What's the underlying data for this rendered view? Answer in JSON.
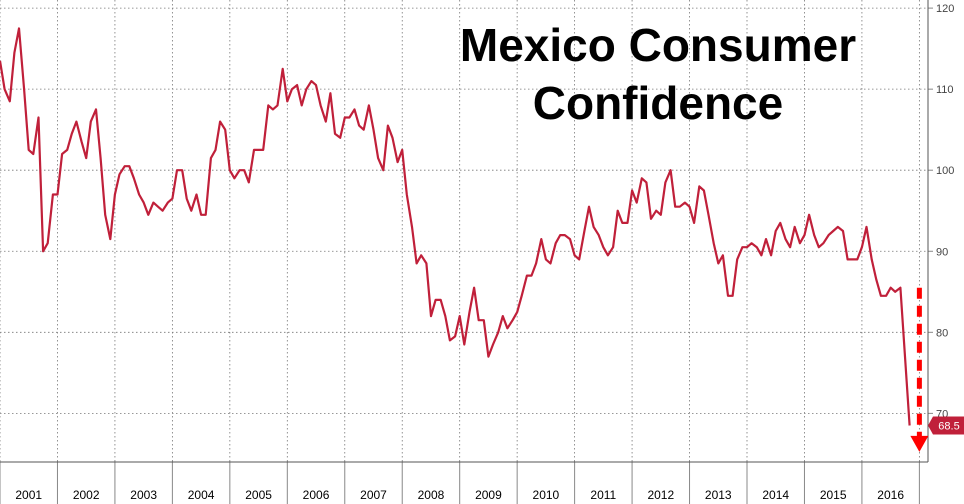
{
  "chart_data": {
    "type": "line",
    "title_lines": [
      "Mexico Consumer",
      "Confidence"
    ],
    "xlabel": "",
    "ylabel": "",
    "ylim": [
      64,
      121
    ],
    "xlim": [
      2001.0,
      2017.15
    ],
    "y_ticks": [
      120,
      110,
      100,
      90,
      80,
      70
    ],
    "x_year_labels": [
      "2001",
      "2002",
      "2003",
      "2004",
      "2005",
      "2006",
      "2007",
      "2008",
      "2009",
      "2010",
      "2011",
      "2012",
      "2013",
      "2014",
      "2015",
      "2016"
    ],
    "grid": true,
    "series": [
      {
        "name": "Mexico Consumer Confidence",
        "color": "#c0203a",
        "points": [
          [
            2001.0,
            113.5
          ],
          [
            2001.08,
            110.0
          ],
          [
            2001.17,
            108.5
          ],
          [
            2001.25,
            114.5
          ],
          [
            2001.33,
            117.5
          ],
          [
            2001.42,
            110.0
          ],
          [
            2001.5,
            102.5
          ],
          [
            2001.58,
            102.0
          ],
          [
            2001.67,
            106.5
          ],
          [
            2001.75,
            90.0
          ],
          [
            2001.83,
            91.0
          ],
          [
            2001.92,
            97.0
          ],
          [
            2002.0,
            97.0
          ],
          [
            2002.08,
            102.0
          ],
          [
            2002.17,
            102.5
          ],
          [
            2002.25,
            104.5
          ],
          [
            2002.33,
            106.0
          ],
          [
            2002.42,
            103.5
          ],
          [
            2002.5,
            101.5
          ],
          [
            2002.58,
            106.0
          ],
          [
            2002.67,
            107.5
          ],
          [
            2002.75,
            101.5
          ],
          [
            2002.83,
            94.5
          ],
          [
            2002.92,
            91.5
          ],
          [
            2003.0,
            97.0
          ],
          [
            2003.08,
            99.5
          ],
          [
            2003.17,
            100.5
          ],
          [
            2003.25,
            100.5
          ],
          [
            2003.33,
            99.0
          ],
          [
            2003.42,
            97.0
          ],
          [
            2003.5,
            96.0
          ],
          [
            2003.58,
            94.5
          ],
          [
            2003.67,
            96.0
          ],
          [
            2003.75,
            95.5
          ],
          [
            2003.83,
            95.0
          ],
          [
            2003.92,
            96.0
          ],
          [
            2004.0,
            96.5
          ],
          [
            2004.08,
            100.0
          ],
          [
            2004.17,
            100.0
          ],
          [
            2004.25,
            96.5
          ],
          [
            2004.33,
            95.0
          ],
          [
            2004.42,
            97.0
          ],
          [
            2004.5,
            94.5
          ],
          [
            2004.58,
            94.5
          ],
          [
            2004.67,
            101.5
          ],
          [
            2004.75,
            102.5
          ],
          [
            2004.83,
            106.0
          ],
          [
            2004.92,
            105.0
          ],
          [
            2005.0,
            100.0
          ],
          [
            2005.08,
            99.0
          ],
          [
            2005.17,
            100.0
          ],
          [
            2005.25,
            100.0
          ],
          [
            2005.33,
            98.5
          ],
          [
            2005.42,
            102.5
          ],
          [
            2005.5,
            102.5
          ],
          [
            2005.58,
            102.5
          ],
          [
            2005.67,
            108.0
          ],
          [
            2005.75,
            107.5
          ],
          [
            2005.83,
            108.0
          ],
          [
            2005.92,
            112.5
          ],
          [
            2006.0,
            108.5
          ],
          [
            2006.08,
            110.0
          ],
          [
            2006.17,
            110.5
          ],
          [
            2006.25,
            108.0
          ],
          [
            2006.33,
            110.0
          ],
          [
            2006.42,
            111.0
          ],
          [
            2006.5,
            110.5
          ],
          [
            2006.58,
            108.0
          ],
          [
            2006.67,
            106.0
          ],
          [
            2006.75,
            109.5
          ],
          [
            2006.83,
            104.5
          ],
          [
            2006.92,
            104.0
          ],
          [
            2007.0,
            106.5
          ],
          [
            2007.08,
            106.5
          ],
          [
            2007.17,
            107.5
          ],
          [
            2007.25,
            105.5
          ],
          [
            2007.33,
            105.0
          ],
          [
            2007.42,
            108.0
          ],
          [
            2007.5,
            105.0
          ],
          [
            2007.58,
            101.5
          ],
          [
            2007.67,
            100.0
          ],
          [
            2007.75,
            105.5
          ],
          [
            2007.83,
            104.0
          ],
          [
            2007.92,
            101.0
          ],
          [
            2008.0,
            102.5
          ],
          [
            2008.08,
            97.0
          ],
          [
            2008.17,
            93.0
          ],
          [
            2008.25,
            88.5
          ],
          [
            2008.33,
            89.5
          ],
          [
            2008.42,
            88.5
          ],
          [
            2008.5,
            82.0
          ],
          [
            2008.58,
            84.0
          ],
          [
            2008.67,
            84.0
          ],
          [
            2008.75,
            82.0
          ],
          [
            2008.83,
            79.0
          ],
          [
            2008.92,
            79.5
          ],
          [
            2009.0,
            82.0
          ],
          [
            2009.08,
            78.5
          ],
          [
            2009.17,
            82.5
          ],
          [
            2009.25,
            85.5
          ],
          [
            2009.33,
            81.5
          ],
          [
            2009.42,
            81.5
          ],
          [
            2009.5,
            77.0
          ],
          [
            2009.58,
            78.5
          ],
          [
            2009.67,
            80.0
          ],
          [
            2009.75,
            82.0
          ],
          [
            2009.83,
            80.5
          ],
          [
            2009.92,
            81.5
          ],
          [
            2010.0,
            82.5
          ],
          [
            2010.08,
            84.5
          ],
          [
            2010.17,
            87.0
          ],
          [
            2010.25,
            87.0
          ],
          [
            2010.33,
            88.5
          ],
          [
            2010.42,
            91.5
          ],
          [
            2010.5,
            89.0
          ],
          [
            2010.58,
            88.5
          ],
          [
            2010.67,
            91.0
          ],
          [
            2010.75,
            92.0
          ],
          [
            2010.83,
            92.0
          ],
          [
            2010.92,
            91.5
          ],
          [
            2011.0,
            89.5
          ],
          [
            2011.08,
            89.0
          ],
          [
            2011.17,
            92.5
          ],
          [
            2011.25,
            95.5
          ],
          [
            2011.33,
            93.0
          ],
          [
            2011.42,
            92.0
          ],
          [
            2011.5,
            90.5
          ],
          [
            2011.58,
            89.5
          ],
          [
            2011.67,
            90.5
          ],
          [
            2011.75,
            95.0
          ],
          [
            2011.83,
            93.5
          ],
          [
            2011.92,
            93.5
          ],
          [
            2012.0,
            97.5
          ],
          [
            2012.08,
            96.0
          ],
          [
            2012.17,
            99.0
          ],
          [
            2012.25,
            98.5
          ],
          [
            2012.33,
            94.0
          ],
          [
            2012.42,
            95.0
          ],
          [
            2012.5,
            94.5
          ],
          [
            2012.58,
            98.5
          ],
          [
            2012.67,
            100.0
          ],
          [
            2012.75,
            95.5
          ],
          [
            2012.83,
            95.5
          ],
          [
            2012.92,
            96.0
          ],
          [
            2013.0,
            95.5
          ],
          [
            2013.08,
            93.5
          ],
          [
            2013.17,
            98.0
          ],
          [
            2013.25,
            97.5
          ],
          [
            2013.33,
            94.5
          ],
          [
            2013.42,
            91.0
          ],
          [
            2013.5,
            88.5
          ],
          [
            2013.58,
            89.5
          ],
          [
            2013.67,
            84.5
          ],
          [
            2013.75,
            84.5
          ],
          [
            2013.83,
            89.0
          ],
          [
            2013.92,
            90.5
          ],
          [
            2014.0,
            90.5
          ],
          [
            2014.08,
            91.0
          ],
          [
            2014.17,
            90.5
          ],
          [
            2014.25,
            89.5
          ],
          [
            2014.33,
            91.5
          ],
          [
            2014.42,
            89.5
          ],
          [
            2014.5,
            92.5
          ],
          [
            2014.58,
            93.5
          ],
          [
            2014.67,
            91.5
          ],
          [
            2014.75,
            90.5
          ],
          [
            2014.83,
            93.0
          ],
          [
            2014.92,
            91.0
          ],
          [
            2015.0,
            92.0
          ],
          [
            2015.08,
            94.5
          ],
          [
            2015.17,
            92.0
          ],
          [
            2015.25,
            90.5
          ],
          [
            2015.33,
            91.0
          ],
          [
            2015.42,
            92.0
          ],
          [
            2015.5,
            92.5
          ],
          [
            2015.58,
            93.0
          ],
          [
            2015.67,
            92.5
          ],
          [
            2015.75,
            89.0
          ],
          [
            2015.83,
            89.0
          ],
          [
            2015.92,
            89.0
          ],
          [
            2016.0,
            90.5
          ],
          [
            2016.08,
            93.0
          ],
          [
            2016.17,
            89.0
          ],
          [
            2016.25,
            86.5
          ],
          [
            2016.33,
            84.5
          ],
          [
            2016.42,
            84.5
          ],
          [
            2016.5,
            85.5
          ],
          [
            2016.58,
            85.0
          ],
          [
            2016.67,
            85.5
          ],
          [
            2016.83,
            68.5
          ]
        ]
      }
    ],
    "last_value_label": "68.5",
    "annotations": [
      {
        "type": "dashed-arrow",
        "direction": "down",
        "color": "#ff0000",
        "from_value": [
          2017.0,
          85.5
        ],
        "to_value": [
          2017.0,
          65.5
        ]
      }
    ]
  }
}
